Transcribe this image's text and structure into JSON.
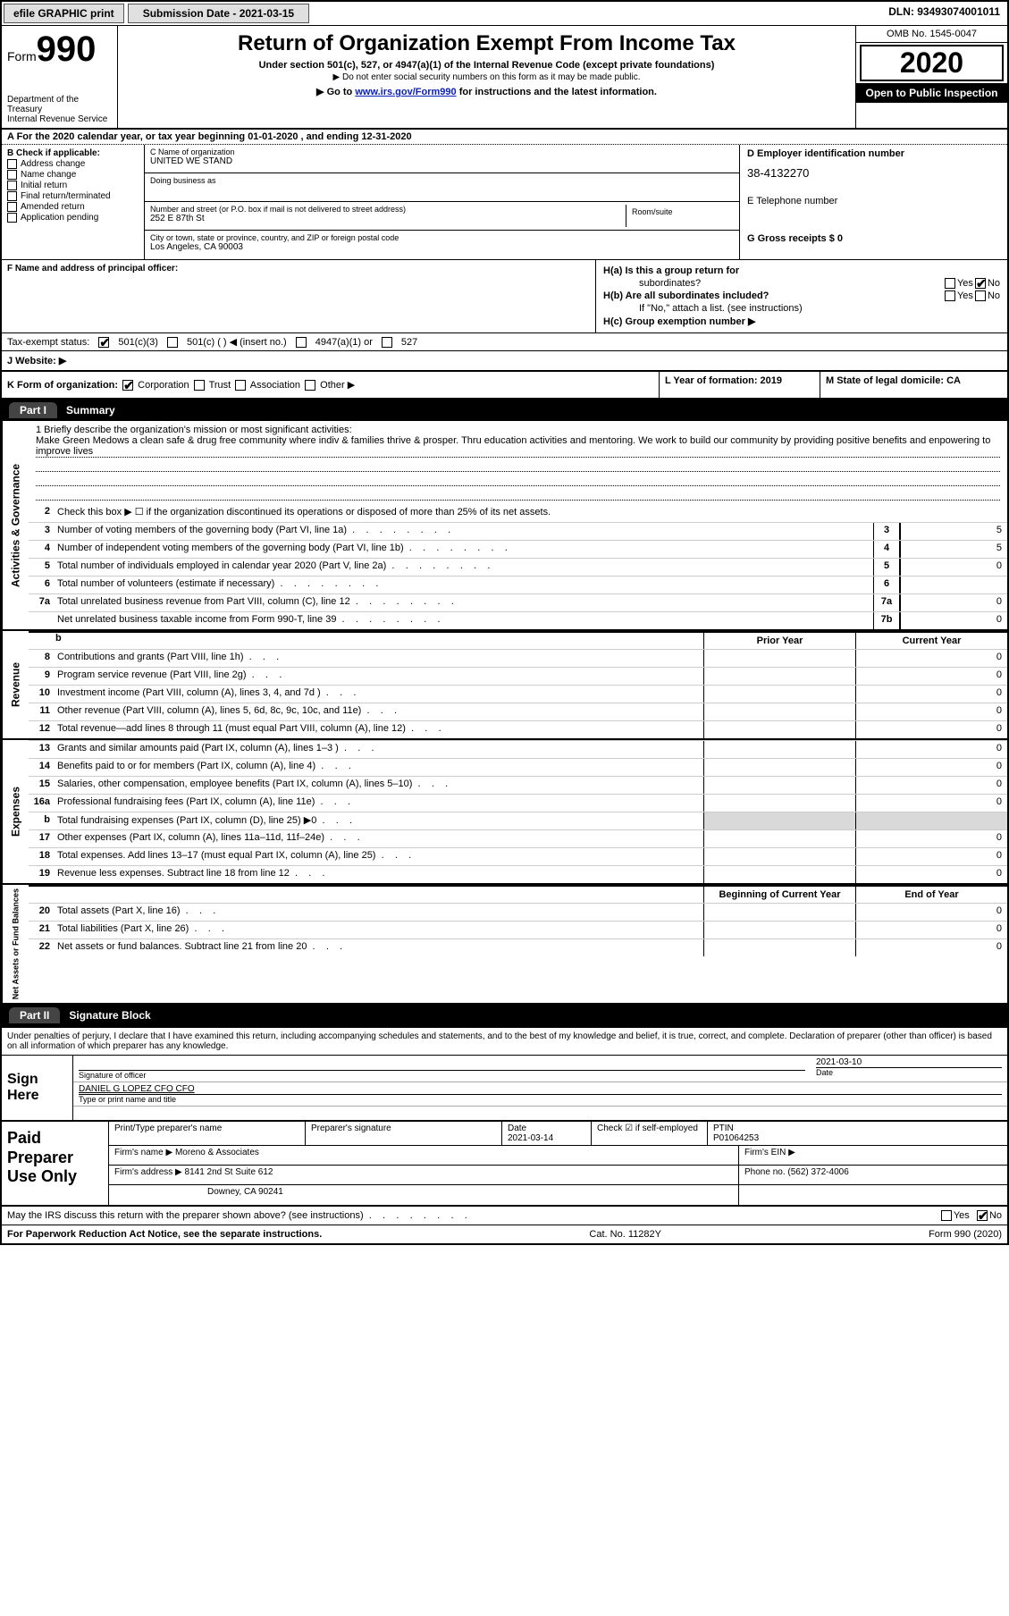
{
  "topbar": {
    "efile": "efile GRAPHIC print",
    "submission": "Submission Date - 2021-03-15",
    "dln": "DLN: 93493074001011"
  },
  "header": {
    "form_prefix": "Form",
    "form_num": "990",
    "dept": "Department of the Treasury\nInternal Revenue Service",
    "title": "Return of Organization Exempt From Income Tax",
    "sub1": "Under section 501(c), 527, or 4947(a)(1) of the Internal Revenue Code (except private foundations)",
    "sub2": "Do not enter social security numbers on this form as it may be made public.",
    "sub3a": "Go to ",
    "sub3_link": "www.irs.gov/Form990",
    "sub3b": " for instructions and the latest information.",
    "omb": "OMB No. 1545-0047",
    "year": "2020",
    "open": "Open to Public Inspection"
  },
  "rowA": "A  For the 2020 calendar year, or tax year beginning 01-01-2020     , and ending 12-31-2020",
  "colB": {
    "label": "B Check if applicable:",
    "items": [
      "Address change",
      "Name change",
      "Initial return",
      "Final return/terminated",
      "Amended return",
      "Application pending"
    ]
  },
  "colC": {
    "name_label": "C Name of organization",
    "name": "UNITED WE STAND",
    "dba_label": "Doing business as",
    "addr_label": "Number and street (or P.O. box if mail is not delivered to street address)",
    "room_label": "Room/suite",
    "addr": "252 E 87th St",
    "city_label": "City or town, state or province, country, and ZIP or foreign postal code",
    "city": "Los Angeles, CA  90003"
  },
  "colDE": {
    "d_label": "D Employer identification number",
    "ein": "38-4132270",
    "e_label": "E Telephone number",
    "g_label": "G Gross receipts $ 0"
  },
  "sectF": {
    "f_label": "F  Name and address of principal officer:",
    "ha": "H(a)  Is this a group return for",
    "ha2": "subordinates?",
    "hb": "H(b)  Are all subordinates included?",
    "hb2": "If \"No,\" attach a list. (see instructions)",
    "hc": "H(c)  Group exemption number ▶",
    "yes": "Yes",
    "no": "No"
  },
  "rowI": {
    "label": "Tax-exempt status:",
    "o1": "501(c)(3)",
    "o2": "501(c) (  )  ◀ (insert no.)",
    "o3": "4947(a)(1) or",
    "o4": "527"
  },
  "rowJ": "J   Website: ▶",
  "rowK": {
    "k": "K Form of organization:",
    "corp": "Corporation",
    "trust": "Trust",
    "assoc": "Association",
    "other": "Other ▶",
    "l": "L Year of formation: 2019",
    "m": "M State of legal domicile: CA"
  },
  "part1": {
    "tab": "Part I",
    "title": "Summary"
  },
  "mission_label": "1  Briefly describe the organization's mission or most significant activities:",
  "mission": "Make Green Medows a clean safe & drug free community where indiv & families thrive & prosper. Thru education activities and mentoring. We work to build our community by providing positive benefits and enpowering to improve lives",
  "lines_ag": [
    {
      "n": "2",
      "t": "Check this box ▶ ☐  if the organization discontinued its operations or disposed of more than 25% of its net assets."
    },
    {
      "n": "3",
      "t": "Number of voting members of the governing body (Part VI, line 1a)",
      "b": "3",
      "v": "5"
    },
    {
      "n": "4",
      "t": "Number of independent voting members of the governing body (Part VI, line 1b)",
      "b": "4",
      "v": "5"
    },
    {
      "n": "5",
      "t": "Total number of individuals employed in calendar year 2020 (Part V, line 2a)",
      "b": "5",
      "v": "0"
    },
    {
      "n": "6",
      "t": "Total number of volunteers (estimate if necessary)",
      "b": "6",
      "v": ""
    },
    {
      "n": "7a",
      "t": "Total unrelated business revenue from Part VIII, column (C), line 12",
      "b": "7a",
      "v": "0"
    },
    {
      "n": "",
      "t": "Net unrelated business taxable income from Form 990-T, line 39",
      "b": "7b",
      "v": "0"
    }
  ],
  "colheaders": {
    "prior": "Prior Year",
    "current": "Current Year",
    "begin": "Beginning of Current Year",
    "end": "End of Year"
  },
  "revenue": [
    {
      "n": "8",
      "t": "Contributions and grants (Part VIII, line 1h)",
      "c": "0"
    },
    {
      "n": "9",
      "t": "Program service revenue (Part VIII, line 2g)",
      "c": "0"
    },
    {
      "n": "10",
      "t": "Investment income (Part VIII, column (A), lines 3, 4, and 7d )",
      "c": "0"
    },
    {
      "n": "11",
      "t": "Other revenue (Part VIII, column (A), lines 5, 6d, 8c, 9c, 10c, and 11e)",
      "c": "0"
    },
    {
      "n": "12",
      "t": "Total revenue—add lines 8 through 11 (must equal Part VIII, column (A), line 12)",
      "c": "0"
    }
  ],
  "expenses": [
    {
      "n": "13",
      "t": "Grants and similar amounts paid (Part IX, column (A), lines 1–3 )",
      "c": "0"
    },
    {
      "n": "14",
      "t": "Benefits paid to or for members (Part IX, column (A), line 4)",
      "c": "0"
    },
    {
      "n": "15",
      "t": "Salaries, other compensation, employee benefits (Part IX, column (A), lines 5–10)",
      "c": "0"
    },
    {
      "n": "16a",
      "t": "Professional fundraising fees (Part IX, column (A), line 11e)",
      "c": "0"
    },
    {
      "n": "b",
      "t": "Total fundraising expenses (Part IX, column (D), line 25) ▶0",
      "shade": true
    },
    {
      "n": "17",
      "t": "Other expenses (Part IX, column (A), lines 11a–11d, 11f–24e)",
      "c": "0"
    },
    {
      "n": "18",
      "t": "Total expenses. Add lines 13–17 (must equal Part IX, column (A), line 25)",
      "c": "0"
    },
    {
      "n": "19",
      "t": "Revenue less expenses. Subtract line 18 from line 12",
      "c": "0"
    }
  ],
  "netassets": [
    {
      "n": "20",
      "t": "Total assets (Part X, line 16)",
      "c": "0"
    },
    {
      "n": "21",
      "t": "Total liabilities (Part X, line 26)",
      "c": "0"
    },
    {
      "n": "22",
      "t": "Net assets or fund balances. Subtract line 21 from line 20",
      "c": "0"
    }
  ],
  "sidebars": {
    "ag": "Activities & Governance",
    "rev": "Revenue",
    "exp": "Expenses",
    "na": "Net Assets or Fund Balances"
  },
  "part2": {
    "tab": "Part II",
    "title": "Signature Block"
  },
  "decl": "Under penalties of perjury, I declare that I have examined this return, including accompanying schedules and statements, and to the best of my knowledge and belief, it is true, correct, and complete. Declaration of preparer (other than officer) is based on all information of which preparer has any knowledge.",
  "sign": {
    "here": "Sign Here",
    "sig_label": "Signature of officer",
    "date_label": "Date",
    "date": "2021-03-10",
    "name": "DANIEL G LOPEZ CFO  CFO",
    "name_label": "Type or print name and title"
  },
  "paid": {
    "label": "Paid Preparer Use Only",
    "h1": "Print/Type preparer's name",
    "h2": "Preparer's signature",
    "h3": "Date",
    "h3v": "2021-03-14",
    "h4": "Check ☑ if self-employed",
    "h5": "PTIN",
    "h5v": "P01064253",
    "firm_label": "Firm's name    ▶",
    "firm": "Moreno & Associates",
    "ein_label": "Firm's EIN ▶",
    "addr_label": "Firm's address ▶",
    "addr1": "8141 2nd St Suite 612",
    "addr2": "Downey, CA  90241",
    "phone_label": "Phone no. (562) 372-4006"
  },
  "discuss": "May the IRS discuss this return with the preparer shown above? (see instructions)",
  "footer": {
    "l": "For Paperwork Reduction Act Notice, see the separate instructions.",
    "m": "Cat. No. 11282Y",
    "r": "Form 990 (2020)"
  }
}
